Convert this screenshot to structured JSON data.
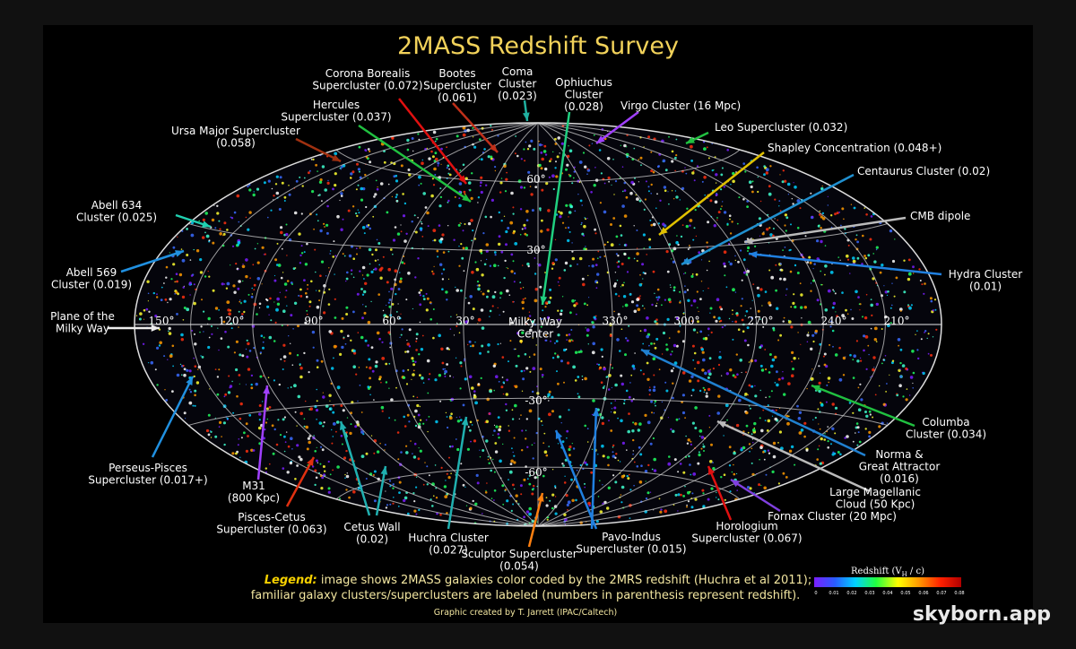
{
  "title": "2MASS Redshift Survey",
  "labels": [
    {
      "lines": [
        "Corona Borealis",
        "Supercluster (0.072)"
      ]
    },
    {
      "lines": [
        "Bootes",
        "Supercluster",
        "(0.061)"
      ]
    },
    {
      "lines": [
        "Coma",
        "Cluster",
        "(0.023)"
      ]
    },
    {
      "lines": [
        "Ophiuchus",
        "Cluster",
        "(0.028)"
      ]
    },
    {
      "lines": [
        "Hercules",
        "Supercluster (0.037)"
      ]
    },
    {
      "lines": [
        "Virgo Cluster (16 Mpc)"
      ]
    },
    {
      "lines": [
        "Leo Supercluster (0.032)"
      ]
    },
    {
      "lines": [
        "Ursa Major Supercluster",
        "(0.058)"
      ]
    },
    {
      "lines": [
        "Shapley Concentration (0.048+)"
      ]
    },
    {
      "lines": [
        "Centaurus Cluster (0.02)"
      ]
    },
    {
      "lines": [
        "Abell 634",
        "Cluster (0.025)"
      ]
    },
    {
      "lines": [
        "CMB dipole"
      ]
    },
    {
      "lines": [
        "Abell 569",
        "Cluster (0.019)"
      ]
    },
    {
      "lines": [
        "Hydra Cluster",
        "(0.01)"
      ]
    },
    {
      "lines": [
        "Plane of the",
        "Milky Way"
      ]
    },
    {
      "lines": [
        "Milky Way",
        "Center"
      ]
    },
    {
      "lines": [
        "Columba",
        "Cluster (0.034)"
      ]
    },
    {
      "lines": [
        "Perseus-Pisces",
        "Supercluster (0.017+)"
      ]
    },
    {
      "lines": [
        "Norma &",
        "Great Attractor",
        "(0.016)"
      ]
    },
    {
      "lines": [
        "M31",
        "(800 Kpc)"
      ]
    },
    {
      "lines": [
        "Large Magellanic",
        "Cloud (50 Kpc)"
      ]
    },
    {
      "lines": [
        "Fornax Cluster (20 Mpc)"
      ]
    },
    {
      "lines": [
        "Pisces-Cetus",
        "Supercluster (0.063)"
      ]
    },
    {
      "lines": [
        "Cetus Wall",
        "(0.02)"
      ]
    },
    {
      "lines": [
        "Huchra Cluster",
        "(0.027)"
      ]
    },
    {
      "lines": [
        "Pavo-Indus",
        "Supercluster (0.015)"
      ]
    },
    {
      "lines": [
        "Horologium",
        "Supercluster (0.067)"
      ]
    },
    {
      "lines": [
        "Sculptor Supercluster",
        "(0.054)"
      ]
    }
  ],
  "grid_labels": {
    "latitude": [
      "60°",
      "30°",
      "-30°",
      "-60°"
    ],
    "longitude": [
      "150°",
      "120°",
      "90°",
      "60°",
      "30°",
      "330°",
      "300°",
      "270°",
      "240°",
      "210°"
    ]
  },
  "legend": {
    "keyword": "Legend:",
    "line1": " image shows 2MASS galaxies color coded by the 2MRS redshift (Huchra et al 2011);",
    "line2": "familiar galaxy clusters/superclusters are labeled (numbers in parenthesis represent redshift)."
  },
  "credit": "Graphic created by T. Jarrett (IPAC/Caltech)",
  "colorbar": {
    "title": "Redshift (V",
    "title_sub": "H",
    "title_end": " / c)",
    "ticks": [
      0,
      0.01,
      0.02,
      0.03,
      0.04,
      0.05,
      0.06,
      0.07,
      0.08
    ]
  },
  "watermark": "skyborn.app"
}
